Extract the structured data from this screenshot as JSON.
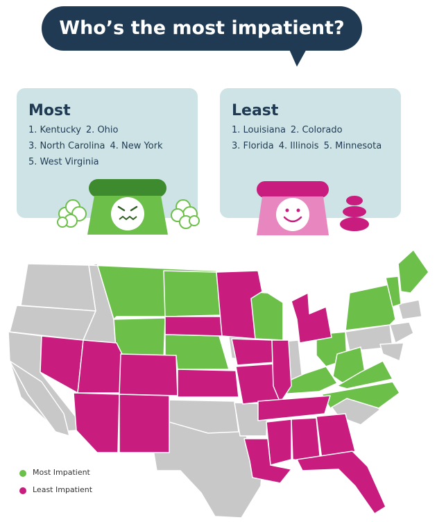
{
  "title": "Who’s the most impatient?",
  "most": {
    "heading": "Most",
    "states": [
      "1. Kentucky",
      "2. Ohio",
      "3. North Carolina",
      "4. New York",
      "5. West Virginia"
    ]
  },
  "least": {
    "heading": "Least",
    "states": [
      "1. Louisiana",
      "2. Colorado",
      "3. Florida",
      "4. Illinois",
      "5. Minnesota"
    ]
  },
  "legend": [
    {
      "label": "Most Impatient",
      "color": "#6cc04a"
    },
    {
      "label": "Least Impatient",
      "color": "#c81d7e"
    }
  ],
  "map": {
    "neutral_color": "#c8c8c8",
    "border_color": "#ffffff",
    "most_impatient_states": [
      "Montana",
      "North Dakota",
      "Wyoming",
      "Nebraska",
      "Wisconsin",
      "Ohio",
      "Kentucky",
      "West Virginia",
      "Virginia",
      "North Carolina",
      "New York",
      "Vermont",
      "New Hampshire",
      "Maine"
    ],
    "least_impatient_states": [
      "Nevada",
      "Utah",
      "Colorado",
      "Arizona",
      "New Mexico",
      "South Dakota",
      "Kansas",
      "Minnesota",
      "Iowa",
      "Missouri",
      "Illinois",
      "Michigan",
      "Tennessee",
      "Mississippi",
      "Alabama",
      "Georgia",
      "Florida",
      "Louisiana"
    ]
  },
  "colors": {
    "title_bubble": "#1f3a52",
    "card_background": "#cde3e6",
    "text_dark": "#1f3a52",
    "angry_phone": "#6cc04a",
    "happy_phone": "#e04fa6"
  },
  "icons": [
    "angry-phone-icon",
    "steam-puff-icon",
    "happy-phone-icon",
    "stacked-stones-icon"
  ]
}
